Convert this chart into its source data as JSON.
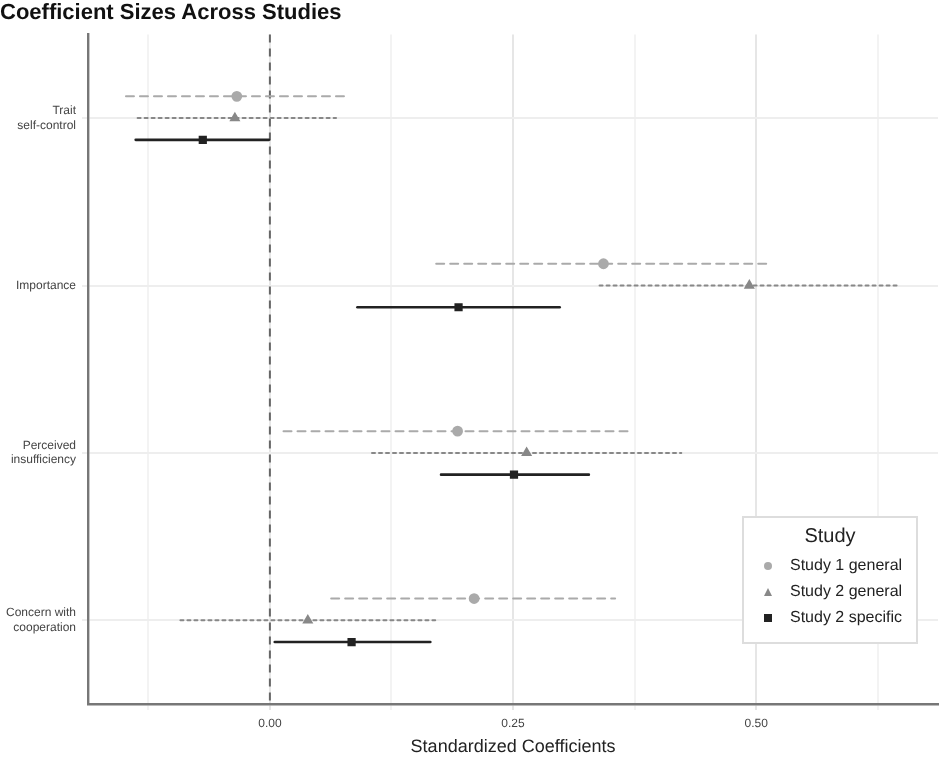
{
  "chart_data": {
    "type": "scatter",
    "orientation": "horizontal",
    "title": "Coefficient Sizes Across Studies",
    "xlabel": "Standardized Coefficients",
    "legend_title": "Study",
    "legend": "bottom right",
    "grid": true,
    "categories": [
      "Trait\nself-control",
      "Importance",
      "Perceived\ninsufficiency",
      "Concern with\ncooperation"
    ],
    "xlim": [
      -0.187,
      0.687
    ],
    "xticks": [
      {
        "value": -0.125,
        "label": null
      },
      {
        "value": 0,
        "label": "0.00"
      },
      {
        "value": 0.125,
        "label": null
      },
      {
        "value": 0.25,
        "label": "0.25"
      },
      {
        "value": 0.375,
        "label": null
      },
      {
        "value": 0.5,
        "label": "0.50"
      },
      {
        "value": 0.625,
        "label": null
      }
    ],
    "ref_lines": [
      {
        "axis": "x",
        "value": 0,
        "color": "#666666",
        "line_style": "dashed"
      }
    ],
    "series": [
      {
        "name": "Study 1 general",
        "color": "#aaaaaa",
        "marker": "circle",
        "line_style": "dashed",
        "values": [
          -0.034,
          0.343,
          0.193,
          0.21
        ],
        "errors": [
          [
            -0.148,
            0.079
          ],
          [
            0.171,
            0.516
          ],
          [
            0.014,
            0.372
          ],
          [
            0.063,
            0.355
          ]
        ]
      },
      {
        "name": "Study 2 general",
        "color": "#888888",
        "marker": "triangle",
        "line_style": "dotted",
        "values": [
          -0.036,
          0.493,
          0.264,
          0.039
        ],
        "errors": [
          [
            -0.136,
            0.068
          ],
          [
            0.339,
            0.648
          ],
          [
            0.105,
            0.423
          ],
          [
            -0.092,
            0.17
          ]
        ]
      },
      {
        "name": "Study 2 specific",
        "color": "#222222",
        "marker": "square",
        "line_style": "solid",
        "values": [
          -0.069,
          0.194,
          0.251,
          0.084
        ],
        "errors": [
          [
            -0.138,
            -0.001
          ],
          [
            0.09,
            0.298
          ],
          [
            0.176,
            0.328
          ],
          [
            0.005,
            0.165
          ]
        ]
      }
    ]
  }
}
